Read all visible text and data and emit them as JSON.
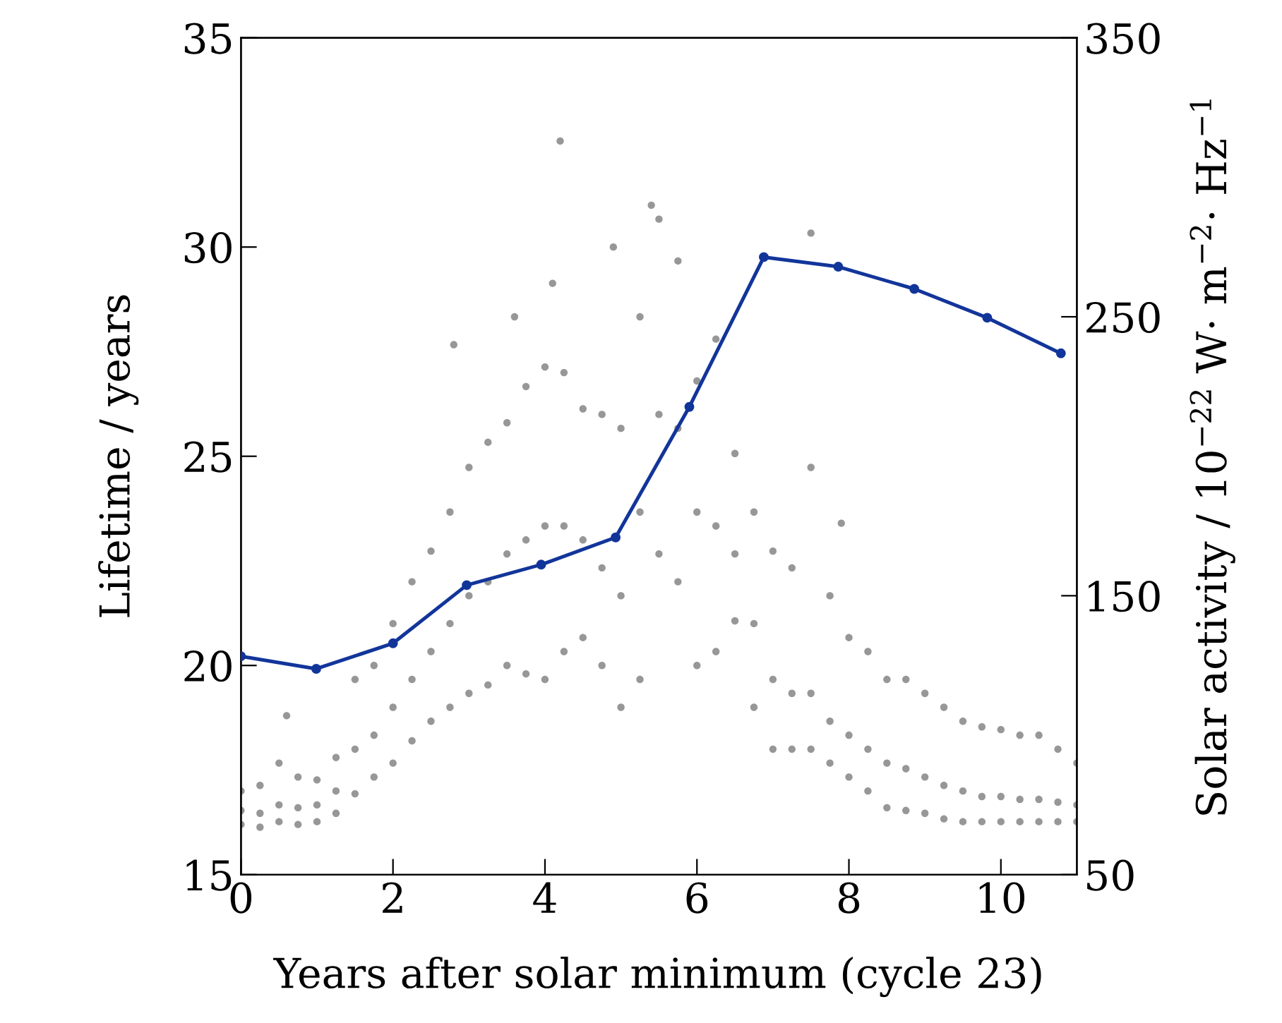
{
  "chart_data": {
    "type": "line",
    "xlabel": "Years after solar minimum (cycle 23)",
    "ylabel": "Lifetime / years",
    "y2label": "Solar activity / 10$^{−22}$ W· m$^{−2}$· Hz$^{−1}$",
    "xlim": [
      0,
      11.0
    ],
    "xticks": [
      0,
      2,
      4,
      6,
      8,
      10
    ],
    "ylim": [
      15,
      35
    ],
    "yticks": [
      15,
      20,
      25,
      30,
      35
    ],
    "y2lim": [
      50,
      350
    ],
    "y2ticks": [
      50,
      150,
      250,
      350
    ],
    "grid": false,
    "legend": false,
    "series": [
      {
        "type": "scatter",
        "axis": "y2",
        "color": "#8c8c8c",
        "marker": "circle",
        "x": [
          0,
          0,
          0,
          0.25,
          0.25,
          0.25,
          0.5,
          0.5,
          0.5,
          0.75,
          0.75,
          0.75,
          1,
          1,
          1,
          1.25,
          1.25,
          1.25,
          1.5,
          1.5,
          1.5,
          1.75,
          1.75,
          1.75,
          2,
          2,
          2,
          2.25,
          2.25,
          2.25,
          2.5,
          2.5,
          2.5,
          2.75,
          2.75,
          2.75,
          3,
          3,
          3,
          3.25,
          3.25,
          3.25,
          3.5,
          3.5,
          3.5,
          3.75,
          3.75,
          3.75,
          4,
          4,
          4,
          4.25,
          4.25,
          4.25,
          4.5,
          4.5,
          4.5,
          4.75,
          4.75,
          4.75,
          5,
          5,
          5,
          5.25,
          5.25,
          5.25,
          5.5,
          5.5,
          5.5,
          5.75,
          5.75,
          5.75,
          6,
          6,
          6,
          6.25,
          6.25,
          6.25,
          6.5,
          6.5,
          6.5,
          6.75,
          6.75,
          6.75,
          7,
          7,
          7,
          7.25,
          7.25,
          7.25,
          7.5,
          7.5,
          7.5,
          7.75,
          7.75,
          7.75,
          8,
          8,
          8,
          8.25,
          8.25,
          8.25,
          8.5,
          8.5,
          8.5,
          8.75,
          8.75,
          8.75,
          9,
          9,
          9,
          9.25,
          9.25,
          9.25,
          9.5,
          9.5,
          9.5,
          9.75,
          9.75,
          9.75,
          10,
          10,
          10,
          10.25,
          10.25,
          10.25,
          10.5,
          10.5,
          10.5,
          10.75,
          10.75,
          10.75,
          11,
          11,
          11,
          2.8,
          4.1,
          4.2,
          4.9,
          5.4,
          7.5,
          7.9,
          0.6,
          3.6
        ],
        "values": [
          68,
          73,
          80,
          67,
          72,
          82,
          69,
          75,
          90,
          68,
          74,
          85,
          69,
          75,
          84,
          72,
          80,
          92,
          79,
          95,
          120,
          85,
          100,
          125,
          90,
          110,
          140,
          98,
          120,
          155,
          105,
          130,
          166,
          110,
          140,
          180,
          115,
          150,
          196,
          118,
          155,
          205,
          125,
          165,
          212,
          122,
          170,
          225,
          120,
          175,
          232,
          130,
          175,
          230,
          135,
          170,
          217,
          125,
          160,
          215,
          110,
          150,
          210,
          120,
          180,
          250,
          165,
          215,
          285,
          155,
          210,
          270,
          125,
          180,
          227,
          130,
          175,
          242,
          141,
          165,
          201,
          110,
          140,
          180,
          95,
          120,
          166,
          95,
          115,
          160,
          95,
          115,
          196,
          90,
          105,
          150,
          85,
          100,
          135,
          80,
          95,
          130,
          74,
          90,
          120,
          73,
          88,
          120,
          72,
          85,
          115,
          70,
          82,
          110,
          69,
          80,
          105,
          69,
          78,
          103,
          69,
          78,
          102,
          69,
          77,
          100,
          69,
          77,
          100,
          69,
          76,
          95,
          69,
          75,
          90,
          240,
          262,
          313,
          275,
          290,
          280,
          176,
          107,
          250
        ]
      },
      {
        "axis": "y",
        "color": "#12359a",
        "marker": "circle",
        "line_style": "solid",
        "x": [
          0,
          0.99,
          2,
          2.97,
          3.95,
          4.93,
          5.9,
          6.88,
          7.86,
          8.86,
          9.82,
          10.79
        ],
        "values": [
          20.22,
          19.92,
          20.53,
          21.92,
          22.41,
          23.06,
          26.18,
          29.76,
          29.53,
          29.0,
          28.31,
          27.46
        ]
      }
    ]
  }
}
